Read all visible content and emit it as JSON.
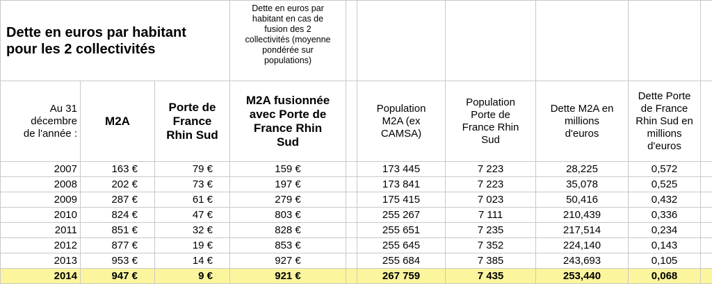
{
  "title": [
    "Dette en euros par habitant",
    "pour les 2 collectivités"
  ],
  "note": [
    "Dette en euros par",
    "habitant en cas de",
    "fusion des 2",
    "collectivités (moyenne",
    "pondérée sur",
    "populations)"
  ],
  "headers": [
    [
      "Au 31",
      "décembre",
      "de l'année :"
    ],
    [
      "M2A"
    ],
    [
      "Porte de",
      "France",
      "Rhin Sud"
    ],
    [
      "M2A fusionnée",
      "avec Porte de",
      "France Rhin",
      "Sud"
    ],
    [
      "Population",
      "M2A  (ex",
      "CAMSA)"
    ],
    [
      "Population",
      "Porte de",
      "France Rhin",
      "Sud"
    ],
    [
      "Dette M2A en",
      "millions",
      "d'euros"
    ],
    [
      "Dette Porte",
      "de France",
      "Rhin Sud en",
      "millions",
      "d'euros"
    ]
  ],
  "rows": [
    [
      "2007",
      "163 €",
      "79 €",
      "159 €",
      "173 445",
      "7 223",
      "28,225",
      "0,572"
    ],
    [
      "2008",
      "202 €",
      "73 €",
      "197 €",
      "173 841",
      "7 223",
      "35,078",
      "0,525"
    ],
    [
      "2009",
      "287 €",
      "61 €",
      "279 €",
      "175 415",
      "7 023",
      "50,416",
      "0,432"
    ],
    [
      "2010",
      "824 €",
      "47 €",
      "803 €",
      "255 267",
      "7 111",
      "210,439",
      "0,336"
    ],
    [
      "2011",
      "851 €",
      "32 €",
      "828 €",
      "255 651",
      "7 235",
      "217,514",
      "0,234"
    ],
    [
      "2012",
      "877 €",
      "19 €",
      "853 €",
      "255 645",
      "7 352",
      "224,140",
      "0,143"
    ],
    [
      "2013",
      "953 €",
      "14 €",
      "927 €",
      "255 684",
      "7 385",
      "243,693",
      "0,105"
    ],
    [
      "2014",
      "947 €",
      "9 €",
      "921 €",
      "267 759",
      "7 435",
      "253,440",
      "0,068"
    ]
  ]
}
